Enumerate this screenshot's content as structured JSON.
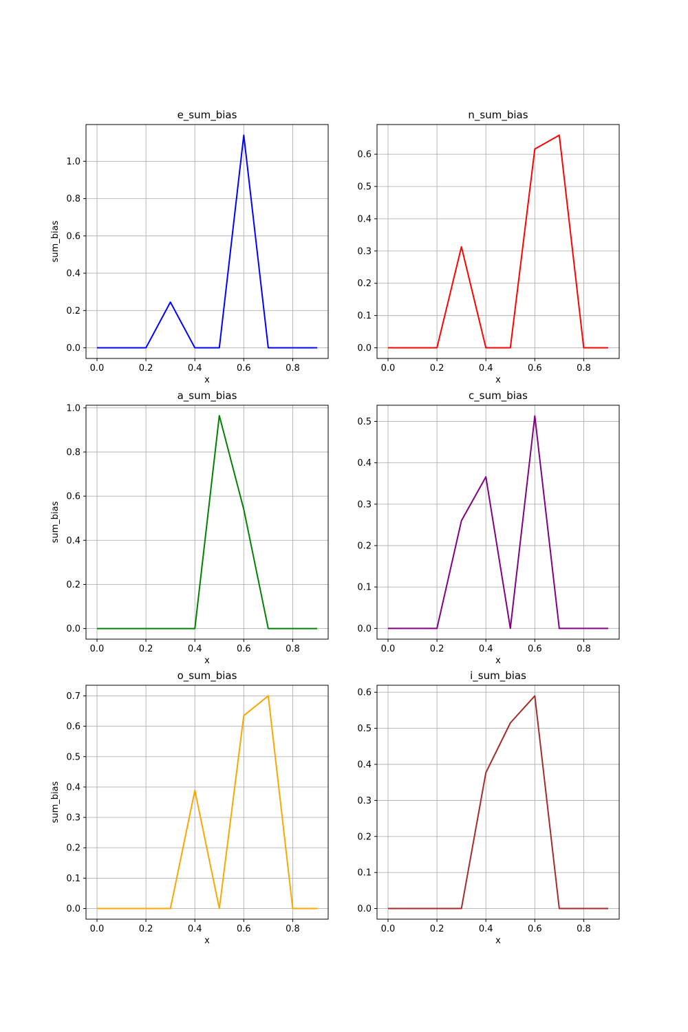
{
  "chart_data": [
    {
      "type": "line",
      "title": "e_sum_bias",
      "xlabel": "x",
      "ylabel": "sum_bias",
      "color": "#0000ff",
      "grid": true,
      "xlim": [
        -0.045,
        0.945
      ],
      "ylim": [
        -0.057,
        1.197
      ],
      "xticks": [
        0.0,
        0.2,
        0.4,
        0.6,
        0.8
      ],
      "xtick_labels": [
        "0.0",
        "0.2",
        "0.4",
        "0.6",
        "0.8"
      ],
      "yticks": [
        0.0,
        0.2,
        0.4,
        0.6,
        0.8,
        1.0
      ],
      "ytick_labels": [
        "0.0",
        "0.2",
        "0.4",
        "0.6",
        "0.8",
        "1.0"
      ],
      "x": [
        0.0,
        0.1,
        0.2,
        0.3,
        0.4,
        0.5,
        0.6,
        0.7,
        0.8,
        0.9
      ],
      "y": [
        0.0,
        0.0,
        0.0,
        0.245,
        0.0,
        0.0,
        1.14,
        0.0,
        0.0,
        0.0
      ]
    },
    {
      "type": "line",
      "title": "n_sum_bias",
      "xlabel": "x",
      "ylabel": "",
      "color": "#ff0000",
      "grid": true,
      "xlim": [
        -0.045,
        0.945
      ],
      "ylim": [
        -0.033,
        0.692
      ],
      "xticks": [
        0.0,
        0.2,
        0.4,
        0.6,
        0.8
      ],
      "xtick_labels": [
        "0.0",
        "0.2",
        "0.4",
        "0.6",
        "0.8"
      ],
      "yticks": [
        0.0,
        0.1,
        0.2,
        0.3,
        0.4,
        0.5,
        0.6
      ],
      "ytick_labels": [
        "0.0",
        "0.1",
        "0.2",
        "0.3",
        "0.4",
        "0.5",
        "0.6"
      ],
      "x": [
        0.0,
        0.1,
        0.2,
        0.3,
        0.4,
        0.5,
        0.6,
        0.7,
        0.8,
        0.9
      ],
      "y": [
        0.0,
        0.0,
        0.0,
        0.313,
        0.0,
        0.0,
        0.616,
        0.659,
        0.0,
        0.0
      ]
    },
    {
      "type": "line",
      "title": "a_sum_bias",
      "xlabel": "x",
      "ylabel": "sum_bias",
      "color": "#008000",
      "grid": true,
      "xlim": [
        -0.045,
        0.945
      ],
      "ylim": [
        -0.048,
        1.012
      ],
      "xticks": [
        0.0,
        0.2,
        0.4,
        0.6,
        0.8
      ],
      "xtick_labels": [
        "0.0",
        "0.2",
        "0.4",
        "0.6",
        "0.8"
      ],
      "yticks": [
        0.0,
        0.2,
        0.4,
        0.6,
        0.8,
        1.0
      ],
      "ytick_labels": [
        "0.0",
        "0.2",
        "0.4",
        "0.6",
        "0.8",
        "1.0"
      ],
      "x": [
        0.0,
        0.1,
        0.2,
        0.3,
        0.4,
        0.5,
        0.6,
        0.7,
        0.8,
        0.9
      ],
      "y": [
        0.0,
        0.0,
        0.0,
        0.0,
        0.0,
        0.965,
        0.54,
        0.0,
        0.0,
        0.0
      ]
    },
    {
      "type": "line",
      "title": "c_sum_bias",
      "xlabel": "x",
      "ylabel": "",
      "color": "#800080",
      "grid": true,
      "xlim": [
        -0.045,
        0.945
      ],
      "ylim": [
        -0.026,
        0.539
      ],
      "xticks": [
        0.0,
        0.2,
        0.4,
        0.6,
        0.8
      ],
      "xtick_labels": [
        "0.0",
        "0.2",
        "0.4",
        "0.6",
        "0.8"
      ],
      "yticks": [
        0.0,
        0.1,
        0.2,
        0.3,
        0.4,
        0.5
      ],
      "ytick_labels": [
        "0.0",
        "0.1",
        "0.2",
        "0.3",
        "0.4",
        "0.5"
      ],
      "x": [
        0.0,
        0.1,
        0.2,
        0.3,
        0.4,
        0.5,
        0.6,
        0.7,
        0.8,
        0.9
      ],
      "y": [
        0.0,
        0.0,
        0.0,
        0.26,
        0.366,
        0.0,
        0.513,
        0.0,
        0.0,
        0.0
      ]
    },
    {
      "type": "line",
      "title": "o_sum_bias",
      "xlabel": "x",
      "ylabel": "sum_bias",
      "color": "#ffa500",
      "grid": true,
      "xlim": [
        -0.045,
        0.945
      ],
      "ylim": [
        -0.035,
        0.735
      ],
      "xticks": [
        0.0,
        0.2,
        0.4,
        0.6,
        0.8
      ],
      "xtick_labels": [
        "0.0",
        "0.2",
        "0.4",
        "0.6",
        "0.8"
      ],
      "yticks": [
        0.0,
        0.1,
        0.2,
        0.3,
        0.4,
        0.5,
        0.6,
        0.7
      ],
      "ytick_labels": [
        "0.0",
        "0.1",
        "0.2",
        "0.3",
        "0.4",
        "0.5",
        "0.6",
        "0.7"
      ],
      "x": [
        0.0,
        0.1,
        0.2,
        0.3,
        0.4,
        0.5,
        0.6,
        0.7,
        0.8,
        0.9
      ],
      "y": [
        0.0,
        0.0,
        0.0,
        0.0,
        0.389,
        0.0,
        0.635,
        0.7,
        0.0,
        0.0
      ]
    },
    {
      "type": "line",
      "title": "i_sum_bias",
      "xlabel": "x",
      "ylabel": "",
      "color": "#a52a2a",
      "grid": true,
      "xlim": [
        -0.045,
        0.945
      ],
      "ylim": [
        -0.0295,
        0.6195
      ],
      "xticks": [
        0.0,
        0.2,
        0.4,
        0.6,
        0.8
      ],
      "xtick_labels": [
        "0.0",
        "0.2",
        "0.4",
        "0.6",
        "0.8"
      ],
      "yticks": [
        0.0,
        0.1,
        0.2,
        0.3,
        0.4,
        0.5,
        0.6
      ],
      "ytick_labels": [
        "0.0",
        "0.1",
        "0.2",
        "0.3",
        "0.4",
        "0.5",
        "0.6"
      ],
      "x": [
        0.0,
        0.1,
        0.2,
        0.3,
        0.4,
        0.5,
        0.6,
        0.7,
        0.8,
        0.9
      ],
      "y": [
        0.0,
        0.0,
        0.0,
        0.0,
        0.377,
        0.515,
        0.59,
        0.0,
        0.0,
        0.0
      ]
    }
  ]
}
